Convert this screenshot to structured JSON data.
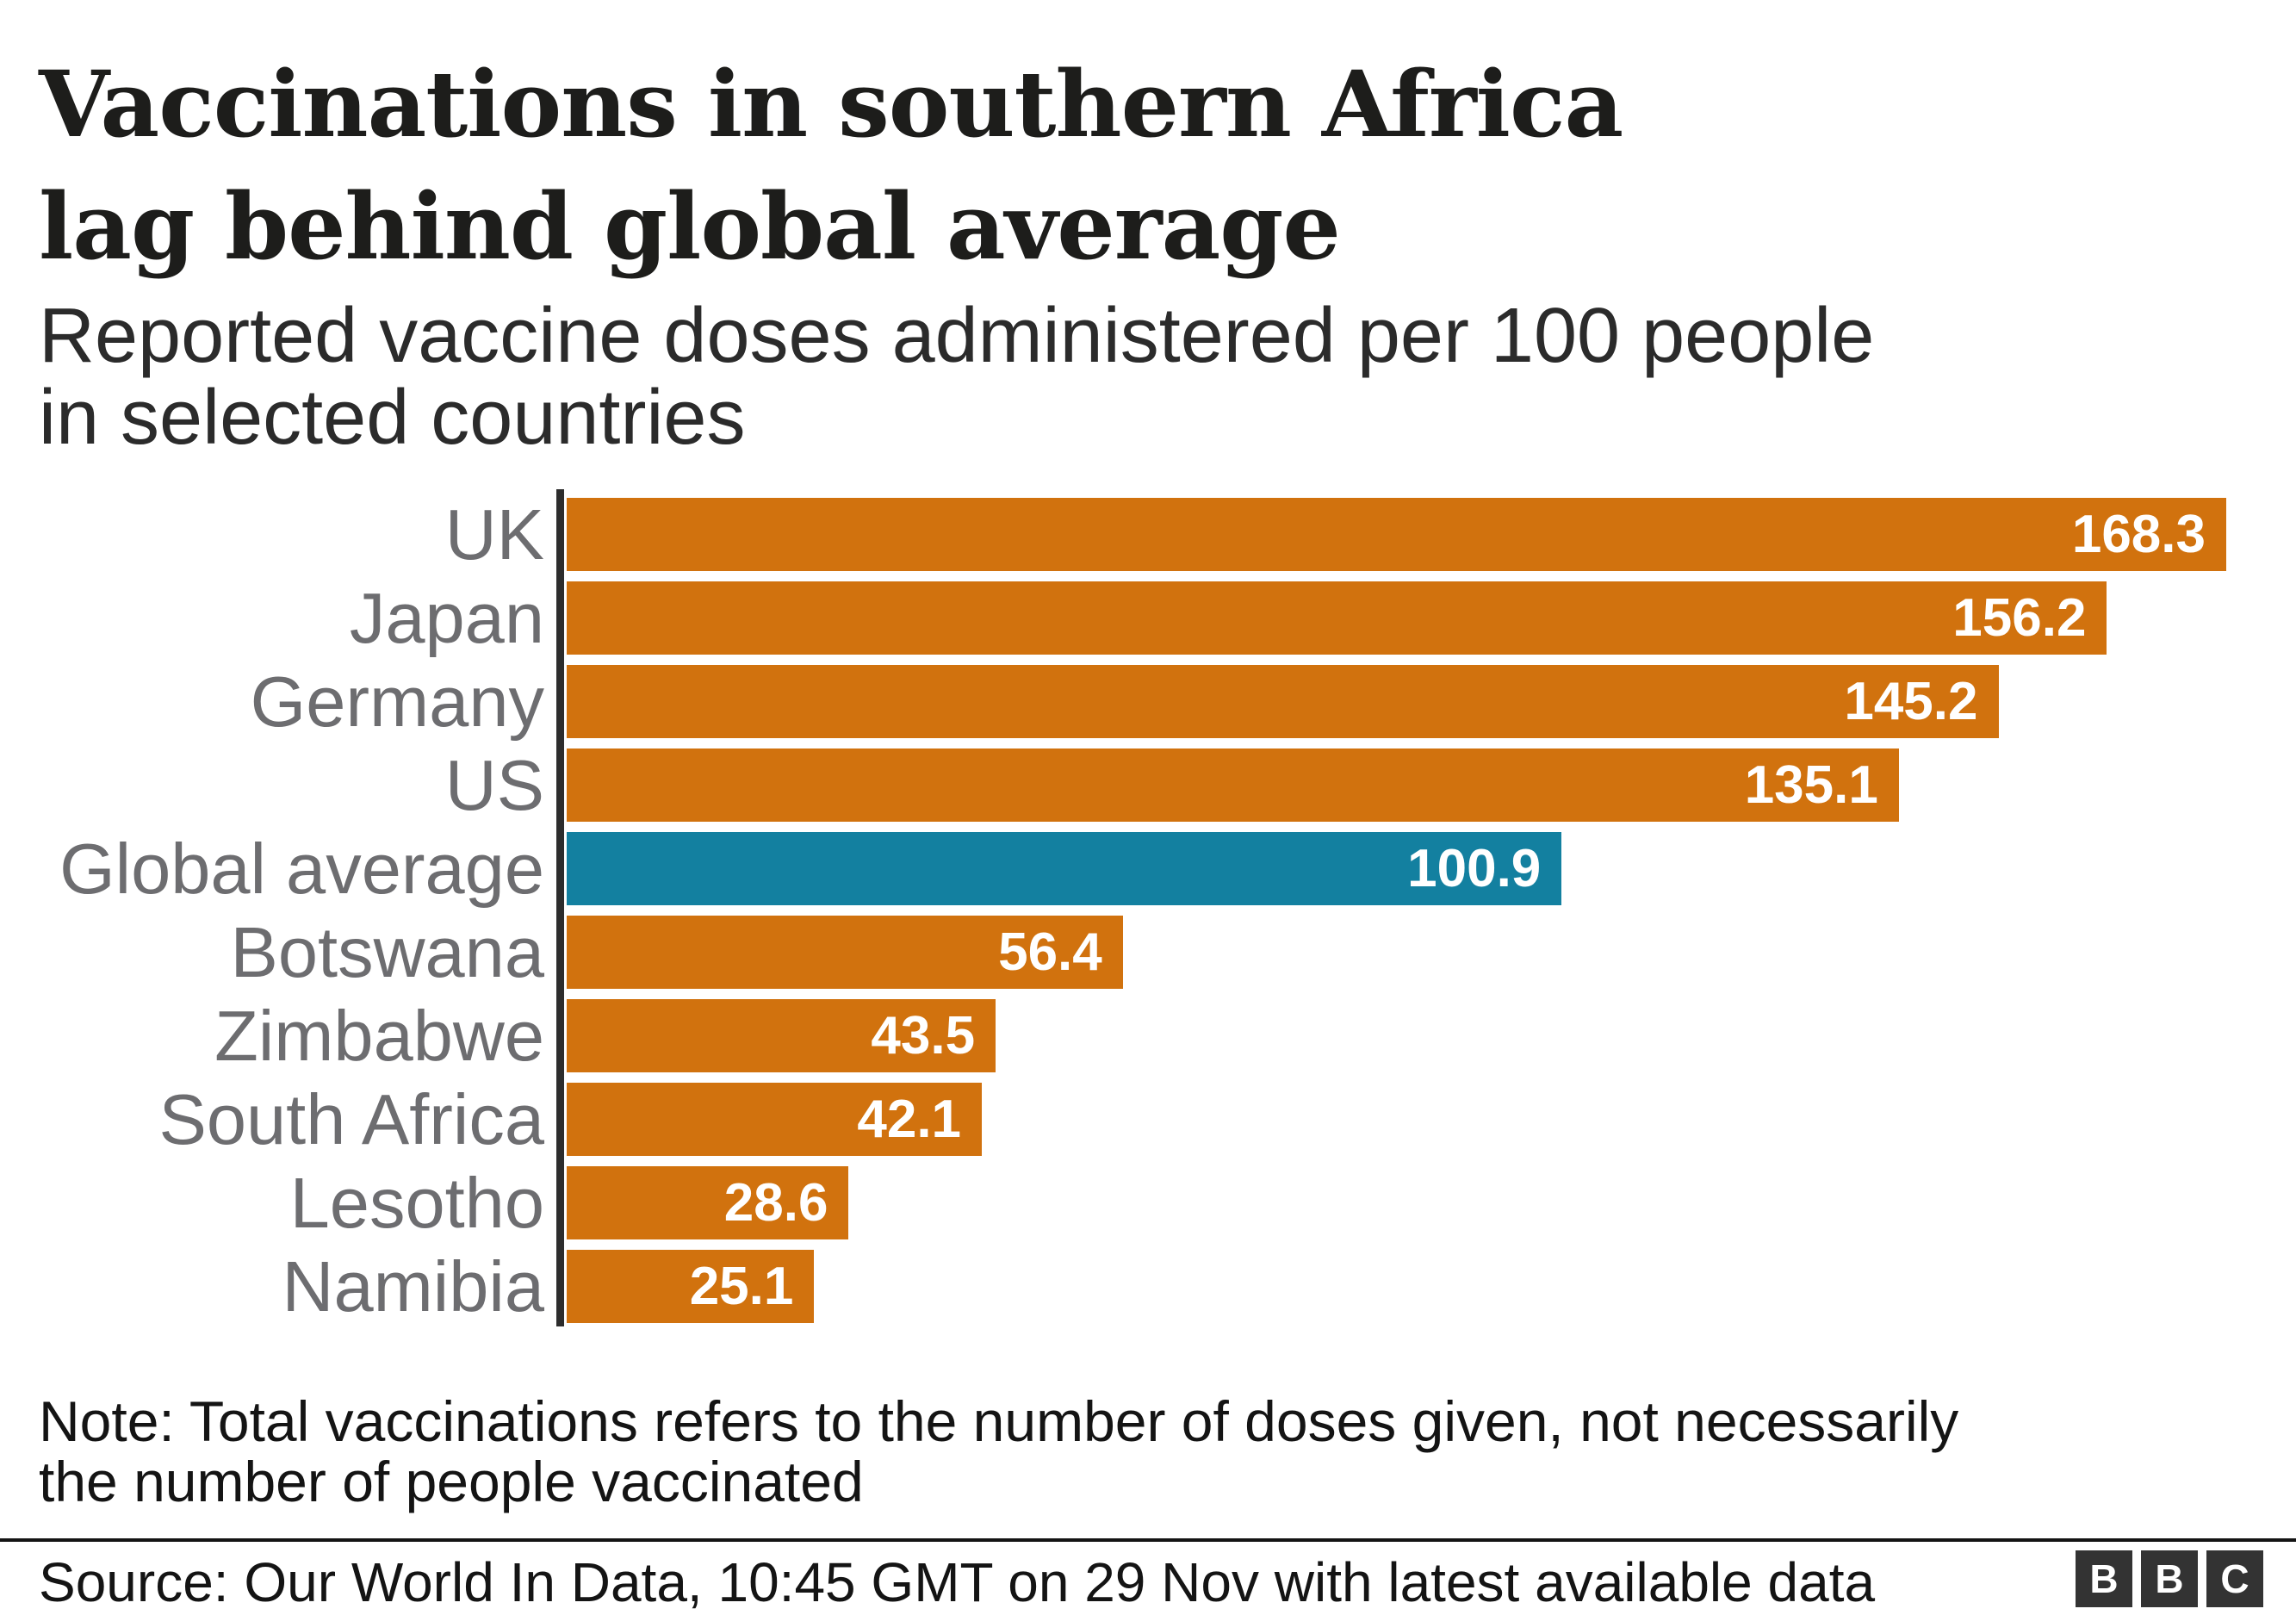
{
  "header": {
    "title_lines": [
      "Vaccinations in southern Africa",
      "lag behind global average"
    ],
    "subtitle_lines": [
      "Reported vaccine doses administered per 100 people",
      "in selected countries"
    ]
  },
  "chart_data": {
    "type": "bar",
    "orientation": "horizontal",
    "title": "Vaccinations in southern Africa lag behind global average",
    "subtitle": "Reported vaccine doses administered per 100 people in selected countries",
    "categories": [
      "UK",
      "Japan",
      "Germany",
      "US",
      "Global average",
      "Botswana",
      "Zimbabwe",
      "South Africa",
      "Lesotho",
      "Namibia"
    ],
    "values": [
      168.3,
      156.2,
      145.2,
      135.1,
      100.9,
      56.4,
      43.5,
      42.1,
      28.6,
      25.1
    ],
    "value_labels": [
      "168.3",
      "156.2",
      "145.2",
      "135.1",
      "100.9",
      "56.4",
      "43.5",
      "42.1",
      "28.6",
      "25.1"
    ],
    "xlim": [
      0,
      168.3
    ],
    "highlight_category": "Global average",
    "bar_color_default": "#d1720e",
    "bar_color_highlight": "#1380a0",
    "grid": false,
    "legend": false,
    "value_labels_inside_bars": true,
    "axis_line_color": "#2d2d2d"
  },
  "footer": {
    "note_lines": [
      "Note: Total vaccinations refers to the number of doses given, not necessarily",
      "the number of people vaccinated"
    ],
    "source": "Source: Our World In Data, 10:45 GMT on 29 Nov with latest available data",
    "logo_letters": [
      "B",
      "B",
      "C"
    ]
  },
  "colors": {
    "background": "#ffffff",
    "title_text": "#1d1d1b",
    "subtitle_text": "#2b2b2b",
    "category_label_text": "#6d6d70",
    "value_label_text": "#ffffff",
    "note_text": "#141414",
    "logo_box": "#333333"
  }
}
